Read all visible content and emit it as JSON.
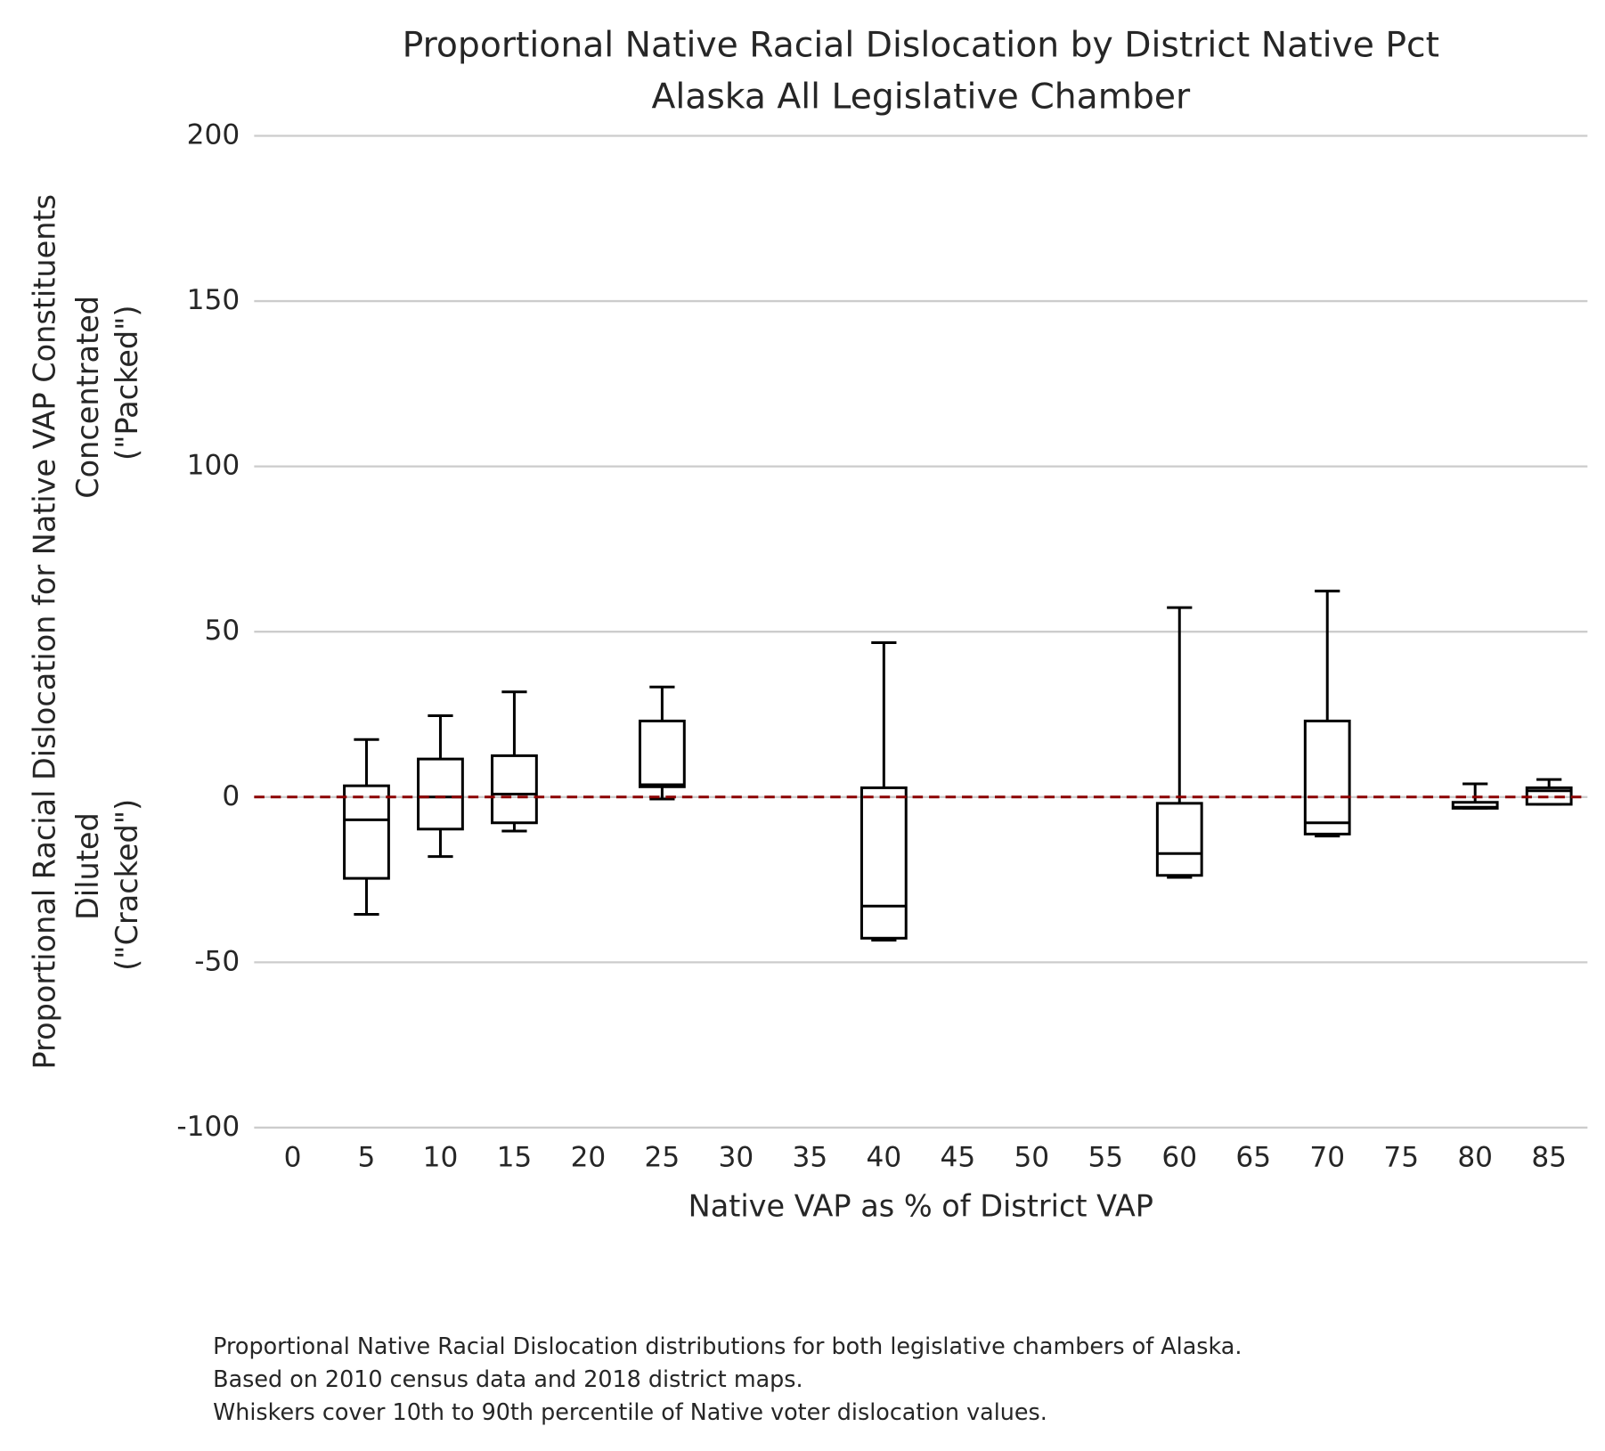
{
  "chart_data": {
    "type": "box",
    "title": "Proportional Native Racial Dislocation by District Native Pct",
    "subtitle": "Alaska All Legislative Chamber",
    "x_label": "Native VAP as % of District VAP",
    "y_label": "Proportional Racial Dislocation for Native VAP Constituents",
    "y_label_upper": [
      "Concentrated",
      "(\"Packed\")"
    ],
    "y_label_lower": [
      "Diluted",
      "(\"Cracked\")"
    ],
    "caption": [
      "Proportional Native Racial Dislocation distributions for both legislative chambers of Alaska.",
      "Based on 2010 census data and 2018 district maps.",
      "Whiskers cover 10th to 90th percentile of Native voter dislocation values."
    ],
    "xlim": [
      -2.6,
      87.6
    ],
    "xticks": [
      0,
      5,
      10,
      15,
      20,
      25,
      30,
      35,
      40,
      45,
      50,
      55,
      60,
      65,
      70,
      75,
      80,
      85
    ],
    "ylim": [
      -100,
      200
    ],
    "yticks": [
      -100,
      -50,
      0,
      50,
      100,
      150,
      200
    ],
    "grid": true,
    "color": "#000000",
    "reference_line": {
      "value": 0,
      "color": "#8b0000"
    },
    "boxes": [
      {
        "x": 5,
        "whislo": -35.5,
        "q1": -24.6,
        "med": -6.9,
        "q3": 3.4,
        "whishi": 17.4
      },
      {
        "x": 10,
        "whislo": -18,
        "q1": -9.7,
        "med": 0,
        "q3": 11.5,
        "whishi": 24.6
      },
      {
        "x": 15,
        "whislo": -10.3,
        "q1": -7.8,
        "med": 0.9,
        "q3": 12.5,
        "whishi": 31.8
      },
      {
        "x": 25,
        "whislo": -0.6,
        "q1": 3.1,
        "med": 3.7,
        "q3": 23,
        "whishi": 33.3
      },
      {
        "x": 40,
        "whislo": -43.3,
        "q1": -42.7,
        "med": -33,
        "q3": 2.8,
        "whishi": 46.7
      },
      {
        "x": 60,
        "whislo": -24.3,
        "q1": -23.7,
        "med": -17.1,
        "q3": -1.9,
        "whishi": 57.3
      },
      {
        "x": 70,
        "whislo": -11.8,
        "q1": -11.2,
        "med": -7.8,
        "q3": 23,
        "whishi": 62.3
      },
      {
        "x": 80,
        "whislo": -3.4,
        "q1": -3.4,
        "med": -3.1,
        "q3": -1.6,
        "whishi": 4
      },
      {
        "x": 85,
        "whislo": -2.2,
        "q1": -2.2,
        "med": 1.9,
        "q3": 2.8,
        "whishi": 5.3
      }
    ]
  }
}
